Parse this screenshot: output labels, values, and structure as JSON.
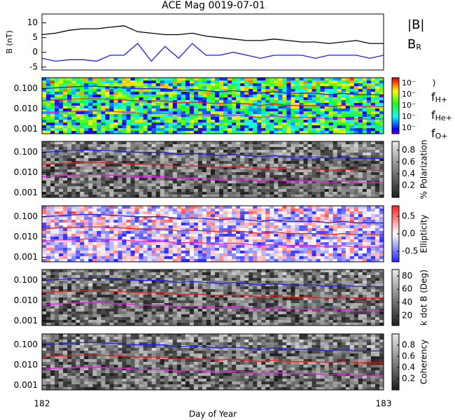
{
  "chart_data": [
    {
      "type": "line",
      "title": "ACE Mag 0019-07-01",
      "ylabel": "B (nT)",
      "xlim": [
        182,
        183
      ],
      "ylim": [
        -6,
        13
      ],
      "yticks": [
        -5,
        0,
        5,
        10
      ],
      "x": [
        182.0,
        182.04,
        182.08,
        182.12,
        182.16,
        182.2,
        182.24,
        182.28,
        182.32,
        182.36,
        182.4,
        182.44,
        182.48,
        182.52,
        182.56,
        182.6,
        182.64,
        182.68,
        182.72,
        182.76,
        182.8,
        182.84,
        182.88,
        182.92,
        182.96,
        183.0
      ],
      "series": [
        {
          "name": "|B|",
          "color": "#000000",
          "values": [
            6,
            6.5,
            7.5,
            8,
            8,
            8.5,
            9,
            7,
            6.5,
            6,
            6,
            6.5,
            5.5,
            5,
            4.5,
            4,
            4,
            4.5,
            4,
            3.5,
            3.5,
            3,
            3.5,
            4,
            3,
            3
          ]
        },
        {
          "name": "BR",
          "color": "#1e1ee6",
          "values": [
            -2,
            -3,
            -2.5,
            -2.5,
            -3,
            -1,
            -1,
            3,
            -3,
            2,
            -2,
            3,
            -1,
            -1,
            0,
            -1,
            -2,
            -1,
            -1,
            -1,
            -2,
            -1,
            -1,
            -1,
            -2,
            -1
          ]
        }
      ]
    },
    {
      "type": "spectrogram",
      "colormap": "rainbow",
      "xlim": [
        182,
        183
      ],
      "ylim": [
        0.0006,
        0.35
      ],
      "yticks": [
        0.001,
        {
          "value": 0.01,
          "label": "0.010"
        },
        {
          "value": 0.1,
          "label": "0.100"
        }
      ],
      "colorbar_label": ")",
      "colorbar_labels": [
        "10⁻",
        "10⁻",
        "10⁻",
        "10⁻",
        "10⁻"
      ],
      "x": [
        182.0,
        182.04,
        182.08,
        182.12,
        182.16,
        182.2,
        182.24,
        182.28,
        182.32,
        182.36,
        182.4,
        182.44,
        182.48,
        182.52,
        182.56,
        182.6,
        182.64,
        182.68,
        182.72,
        182.76,
        182.8,
        182.84,
        182.88,
        182.92,
        182.96,
        183.0
      ],
      "series": [
        {
          "name": "fH+",
          "color": "#1e1ee6",
          "values": [
            0.1,
            0.11,
            0.12,
            0.13,
            0.13,
            0.12,
            0.11,
            0.1,
            0.1,
            0.1,
            0.08,
            0.09,
            0.08,
            0.07,
            0.08,
            0.07,
            0.06,
            0.07,
            0.06,
            0.06,
            0.06,
            0.05,
            0.06,
            0.05,
            0.05,
            0.05
          ]
        },
        {
          "name": "fHe+",
          "color": "#e61e1e",
          "values": [
            0.025,
            0.028,
            0.03,
            0.032,
            0.032,
            0.03,
            0.028,
            0.025,
            0.025,
            0.025,
            0.02,
            0.022,
            0.02,
            0.018,
            0.02,
            0.018,
            0.015,
            0.018,
            0.015,
            0.015,
            0.015,
            0.013,
            0.015,
            0.013,
            0.013,
            0.013
          ]
        },
        {
          "name": "fO+",
          "color": "#e61ee6",
          "values": [
            0.0062,
            0.007,
            0.0075,
            0.008,
            0.008,
            0.0075,
            0.007,
            0.0062,
            0.0062,
            0.0062,
            0.005,
            0.0055,
            0.005,
            0.0045,
            0.005,
            0.0045,
            0.0038,
            0.0045,
            0.0038,
            0.0038,
            0.0038,
            0.0032,
            0.0038,
            0.0032,
            0.0032,
            0.0032
          ]
        }
      ]
    },
    {
      "type": "spectrogram",
      "colormap": "gray",
      "xlim": [
        182,
        183
      ],
      "ylim": [
        0.0006,
        0.35
      ],
      "yticks": [
        0.001,
        {
          "value": 0.01,
          "label": "0.010"
        },
        {
          "value": 0.1,
          "label": "0.100"
        }
      ],
      "colorbar_label": "% Polarization",
      "clim": [
        0,
        0.95
      ],
      "cticks": [
        0.2,
        0.4,
        0.6,
        0.8
      ]
    },
    {
      "type": "spectrogram",
      "colormap": "bwr",
      "xlim": [
        182,
        183
      ],
      "ylim": [
        0.0006,
        0.35
      ],
      "yticks": [
        0.001,
        {
          "value": 0.01,
          "label": "0.010"
        },
        {
          "value": 0.1,
          "label": "0.100"
        }
      ],
      "colorbar_label": "Ellipticity",
      "clim": [
        -0.8,
        0.8
      ],
      "cticks": [
        -0.5,
        {
          "value": 0,
          "label": "0.0"
        },
        0.5
      ]
    },
    {
      "type": "spectrogram",
      "colormap": "gray",
      "xlim": [
        182,
        183
      ],
      "ylim": [
        0.0006,
        0.35
      ],
      "yticks": [
        0.001,
        {
          "value": 0.01,
          "label": "0.010"
        },
        {
          "value": 0.1,
          "label": "0.100"
        }
      ],
      "colorbar_label": "k dot B (Deg)",
      "clim": [
        5,
        90
      ],
      "cticks": [
        20,
        40,
        60,
        80
      ]
    },
    {
      "type": "spectrogram",
      "colormap": "gray",
      "xlim": [
        182,
        183
      ],
      "ylim": [
        0.0006,
        0.35
      ],
      "yticks": [
        0.001,
        {
          "value": 0.01,
          "label": "0.010"
        },
        {
          "value": 0.1,
          "label": "0.100"
        }
      ],
      "colorbar_label": "Coherency",
      "clim": [
        0,
        1
      ],
      "cticks": [
        0.2,
        0.4,
        0.6,
        0.8
      ],
      "xticks": [
        182,
        183
      ],
      "xlabel": "Day of Year"
    }
  ]
}
